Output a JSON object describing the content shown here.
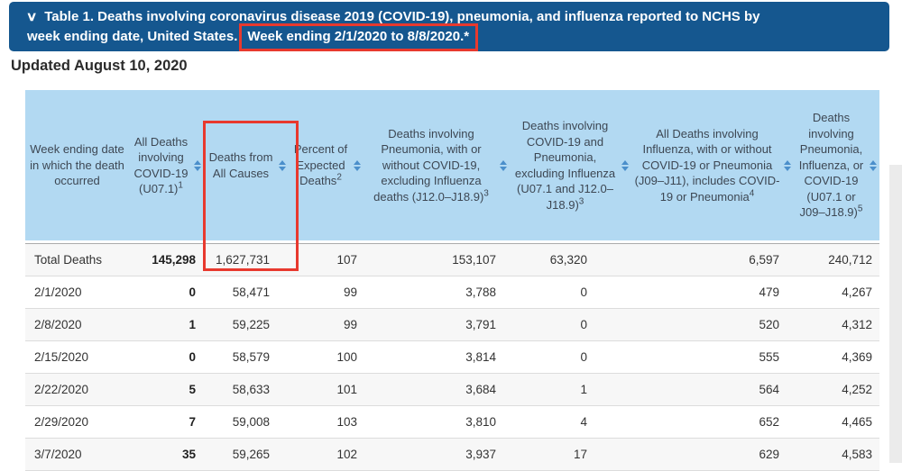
{
  "title_bar": {
    "collapse_icon": "∨",
    "line1": "Table 1. Deaths involving coronavirus disease 2019 (COVID-19), pneumonia, and influenza reported to NCHS by",
    "line2_plain": "week ending date, United States.",
    "line2_highlighted": "Week ending 2/1/2020 to 8/8/2020.*"
  },
  "updated_text": "Updated August 10, 2020",
  "table": {
    "columns": [
      {
        "label": "Week ending date in which the death occurred",
        "sup": ""
      },
      {
        "label": "All Deaths involving COVID-19 (U07.1)",
        "sup": "1"
      },
      {
        "label": "Deaths from All Causes",
        "sup": ""
      },
      {
        "label": "Percent of Expected Deaths",
        "sup": "2"
      },
      {
        "label": "Deaths involving Pneumonia, with or without COVID-19, excluding Influenza deaths (J12.0–J18.9)",
        "sup": "3"
      },
      {
        "label": "Deaths involving COVID-19 and Pneumonia, excluding Influenza (U07.1 and J12.0–J18.9)",
        "sup": "3"
      },
      {
        "label": "All Deaths involving Influenza, with or without COVID-19 or Pneumonia (J09–J11), includes COVID-19 or Pneumonia",
        "sup": "4"
      },
      {
        "label": "Deaths involving Pneumonia, Influenza, or COVID-19 (U07.1 or J09–J18.9)",
        "sup": "5"
      }
    ],
    "rows": [
      {
        "week": "Total Deaths",
        "values": [
          "145,298",
          "1,627,731",
          "107",
          "153,107",
          "63,320",
          "6,597",
          "240,712"
        ]
      },
      {
        "week": "2/1/2020",
        "values": [
          "0",
          "58,471",
          "99",
          "3,788",
          "0",
          "479",
          "4,267"
        ]
      },
      {
        "week": "2/8/2020",
        "values": [
          "1",
          "59,225",
          "99",
          "3,791",
          "0",
          "520",
          "4,312"
        ]
      },
      {
        "week": "2/15/2020",
        "values": [
          "0",
          "58,579",
          "100",
          "3,814",
          "0",
          "555",
          "4,369"
        ]
      },
      {
        "week": "2/22/2020",
        "values": [
          "5",
          "58,633",
          "101",
          "3,684",
          "1",
          "564",
          "4,252"
        ]
      },
      {
        "week": "2/29/2020",
        "values": [
          "7",
          "59,008",
          "103",
          "3,810",
          "4",
          "652",
          "4,465"
        ]
      },
      {
        "week": "3/7/2020",
        "values": [
          "35",
          "59,265",
          "102",
          "3,937",
          "17",
          "629",
          "4,583"
        ]
      }
    ]
  },
  "colors": {
    "title_bar_blue": "#15578F",
    "header_light_blue": "#b2d9f2",
    "sort_arrow_blue": "#4b8fcb",
    "annotation_red": "#e8392e",
    "row_stripe_gray": "#f7f7f7"
  }
}
